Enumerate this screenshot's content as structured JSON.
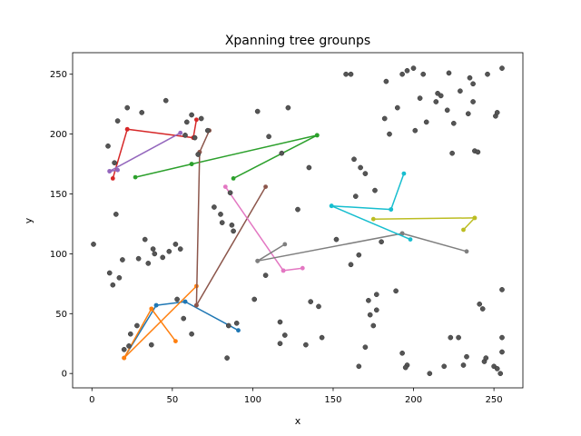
{
  "chart_data": {
    "type": "scatter",
    "title": "Xpanning tree grounps",
    "xlabel": "x",
    "ylabel": "y",
    "xlim": [
      -12,
      268
    ],
    "ylim": [
      -12,
      268
    ],
    "xticks": [
      0,
      50,
      100,
      150,
      200,
      250
    ],
    "yticks": [
      0,
      50,
      100,
      150,
      200,
      250
    ],
    "grid": false,
    "point_color": "#555555",
    "points": [
      [
        1,
        108
      ],
      [
        10,
        190
      ],
      [
        14,
        176
      ],
      [
        15,
        133
      ],
      [
        13,
        74
      ],
      [
        17,
        80
      ],
      [
        19,
        95
      ],
      [
        11,
        84
      ],
      [
        16,
        211
      ],
      [
        22,
        222
      ],
      [
        31,
        218
      ],
      [
        33,
        112
      ],
      [
        38,
        104
      ],
      [
        35,
        92
      ],
      [
        29,
        96
      ],
      [
        39,
        100
      ],
      [
        28,
        40
      ],
      [
        24,
        33
      ],
      [
        23,
        23
      ],
      [
        20,
        20
      ],
      [
        37,
        24
      ],
      [
        44,
        97
      ],
      [
        46,
        228
      ],
      [
        48,
        102
      ],
      [
        55,
        104
      ],
      [
        57,
        46
      ],
      [
        62,
        33
      ],
      [
        52,
        108
      ],
      [
        53,
        62
      ],
      [
        58,
        199
      ],
      [
        59,
        210
      ],
      [
        62,
        216
      ],
      [
        64,
        197
      ],
      [
        68,
        213
      ],
      [
        76,
        139
      ],
      [
        80,
        133
      ],
      [
        81,
        126
      ],
      [
        87,
        124
      ],
      [
        72,
        203
      ],
      [
        66,
        183
      ],
      [
        86,
        151
      ],
      [
        88,
        119
      ],
      [
        90,
        42
      ],
      [
        85,
        40
      ],
      [
        84,
        13
      ],
      [
        101,
        62
      ],
      [
        103,
        219
      ],
      [
        108,
        82
      ],
      [
        110,
        198
      ],
      [
        117,
        43
      ],
      [
        118,
        184
      ],
      [
        120,
        32
      ],
      [
        122,
        222
      ],
      [
        117,
        25
      ],
      [
        128,
        137
      ],
      [
        133,
        24
      ],
      [
        135,
        172
      ],
      [
        136,
        60
      ],
      [
        141,
        56
      ],
      [
        143,
        30
      ],
      [
        152,
        112
      ],
      [
        158,
        250
      ],
      [
        161,
        250
      ],
      [
        161,
        91
      ],
      [
        164,
        148
      ],
      [
        166,
        6
      ],
      [
        166,
        99
      ],
      [
        163,
        179
      ],
      [
        167,
        172
      ],
      [
        170,
        167
      ],
      [
        170,
        22
      ],
      [
        172,
        61
      ],
      [
        173,
        49
      ],
      [
        175,
        40
      ],
      [
        176,
        153
      ],
      [
        177,
        53
      ],
      [
        177,
        66
      ],
      [
        180,
        110
      ],
      [
        182,
        213
      ],
      [
        183,
        244
      ],
      [
        185,
        200
      ],
      [
        189,
        69
      ],
      [
        190,
        222
      ],
      [
        193,
        250
      ],
      [
        193,
        17
      ],
      [
        196,
        7
      ],
      [
        195,
        5
      ],
      [
        196,
        253
      ],
      [
        200,
        255
      ],
      [
        201,
        203
      ],
      [
        204,
        230
      ],
      [
        206,
        250
      ],
      [
        208,
        210
      ],
      [
        210,
        0
      ],
      [
        214,
        227
      ],
      [
        215,
        234
      ],
      [
        217,
        232
      ],
      [
        219,
        6
      ],
      [
        221,
        220
      ],
      [
        222,
        251
      ],
      [
        223,
        30
      ],
      [
        224,
        184
      ],
      [
        225,
        209
      ],
      [
        228,
        30
      ],
      [
        229,
        236
      ],
      [
        231,
        7
      ],
      [
        233,
        14
      ],
      [
        234,
        217
      ],
      [
        235,
        247
      ],
      [
        237,
        242
      ],
      [
        237,
        227
      ],
      [
        238,
        186
      ],
      [
        240,
        185
      ],
      [
        241,
        58
      ],
      [
        243,
        54
      ],
      [
        244,
        10
      ],
      [
        245,
        13
      ],
      [
        246,
        250
      ],
      [
        250,
        6
      ],
      [
        251,
        215
      ],
      [
        252,
        218
      ],
      [
        252,
        4
      ],
      [
        254,
        0
      ],
      [
        255,
        18
      ],
      [
        255,
        30
      ],
      [
        255,
        255
      ],
      [
        255,
        70
      ]
    ],
    "series": [
      {
        "color": "#1f77b4",
        "edges": [
          [
            [
              20,
              13
            ],
            [
              40,
              57
            ]
          ],
          [
            [
              40,
              57
            ],
            [
              58,
              60
            ]
          ],
          [
            [
              58,
              60
            ],
            [
              91,
              36
            ]
          ]
        ]
      },
      {
        "color": "#ff7f0e",
        "edges": [
          [
            [
              20,
              13
            ],
            [
              37,
              54
            ]
          ],
          [
            [
              37,
              54
            ],
            [
              52,
              27
            ]
          ],
          [
            [
              20,
              13
            ],
            [
              65,
              73
            ]
          ]
        ]
      },
      {
        "color": "#2ca02c",
        "edges": [
          [
            [
              27,
              164
            ],
            [
              62,
              175
            ]
          ],
          [
            [
              62,
              175
            ],
            [
              140,
              199
            ]
          ],
          [
            [
              88,
              163
            ],
            [
              140,
              199
            ]
          ]
        ]
      },
      {
        "color": "#d62728",
        "edges": [
          [
            [
              13,
              163
            ],
            [
              22,
              204
            ]
          ],
          [
            [
              22,
              204
            ],
            [
              63,
              197
            ]
          ],
          [
            [
              63,
              197
            ],
            [
              65,
              212
            ]
          ]
        ]
      },
      {
        "color": "#9467bd",
        "edges": [
          [
            [
              11,
              169
            ],
            [
              55,
              201
            ]
          ],
          [
            [
              11,
              169
            ],
            [
              16,
              170
            ]
          ]
        ]
      },
      {
        "color": "#8c564b",
        "edges": [
          [
            [
              65,
              57
            ],
            [
              67,
              185
            ]
          ],
          [
            [
              67,
              185
            ],
            [
              73,
              203
            ]
          ],
          [
            [
              65,
              57
            ],
            [
              108,
              156
            ]
          ]
        ]
      },
      {
        "color": "#e377c2",
        "edges": [
          [
            [
              83,
              156
            ],
            [
              119,
              86
            ]
          ],
          [
            [
              119,
              86
            ],
            [
              131,
              88
            ]
          ]
        ]
      },
      {
        "color": "#7f7f7f",
        "edges": [
          [
            [
              103,
              94
            ],
            [
              193,
              117
            ]
          ],
          [
            [
              193,
              117
            ],
            [
              233,
              102
            ]
          ],
          [
            [
              103,
              94
            ],
            [
              120,
              108
            ]
          ]
        ]
      },
      {
        "color": "#bcbd22",
        "edges": [
          [
            [
              175,
              129
            ],
            [
              238,
              130
            ]
          ],
          [
            [
              238,
              130
            ],
            [
              231,
              120
            ]
          ]
        ]
      },
      {
        "color": "#17becf",
        "edges": [
          [
            [
              149,
              140
            ],
            [
              186,
              137
            ]
          ],
          [
            [
              186,
              137
            ],
            [
              194,
              167
            ]
          ],
          [
            [
              149,
              140
            ],
            [
              198,
              112
            ]
          ]
        ]
      }
    ]
  }
}
